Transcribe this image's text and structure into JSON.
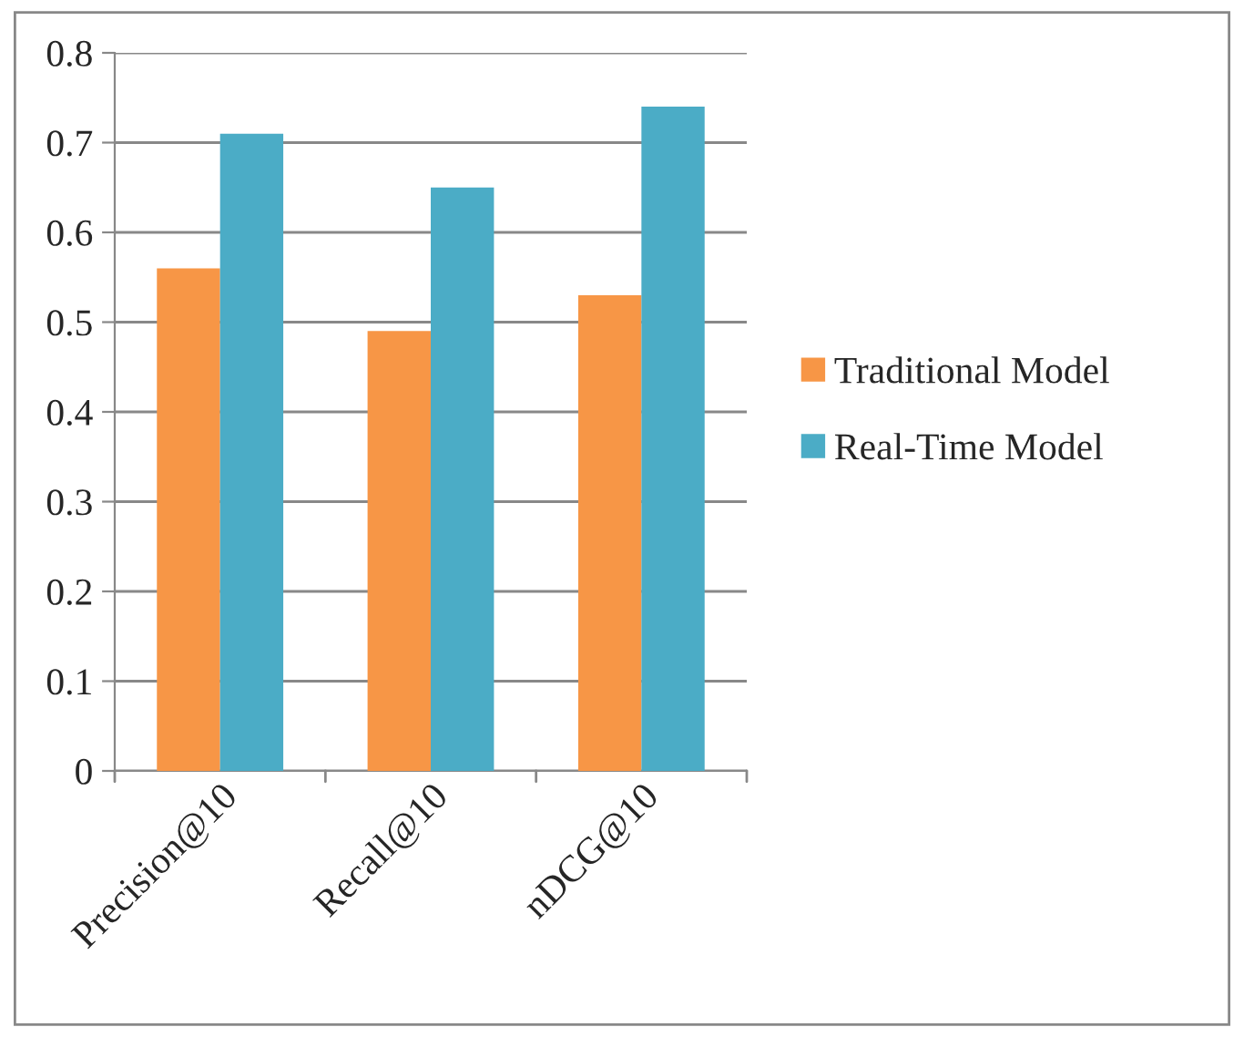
{
  "chart_data": {
    "type": "bar",
    "categories": [
      "Precision@10",
      "Recall@10",
      "nDCG@10"
    ],
    "series": [
      {
        "name": "Traditional Model",
        "color": "#f79646",
        "values": [
          0.56,
          0.49,
          0.53
        ]
      },
      {
        "name": "Real-Time Model",
        "color": "#4bacc6",
        "values": [
          0.71,
          0.65,
          0.74
        ]
      }
    ],
    "ylim": [
      0,
      0.8
    ],
    "yticks": [
      {
        "value": 0,
        "label": "0"
      },
      0.1,
      0.2,
      0.3,
      0.4,
      0.5,
      0.6,
      0.7,
      0.8
    ],
    "grid": "y",
    "legend": "right"
  }
}
